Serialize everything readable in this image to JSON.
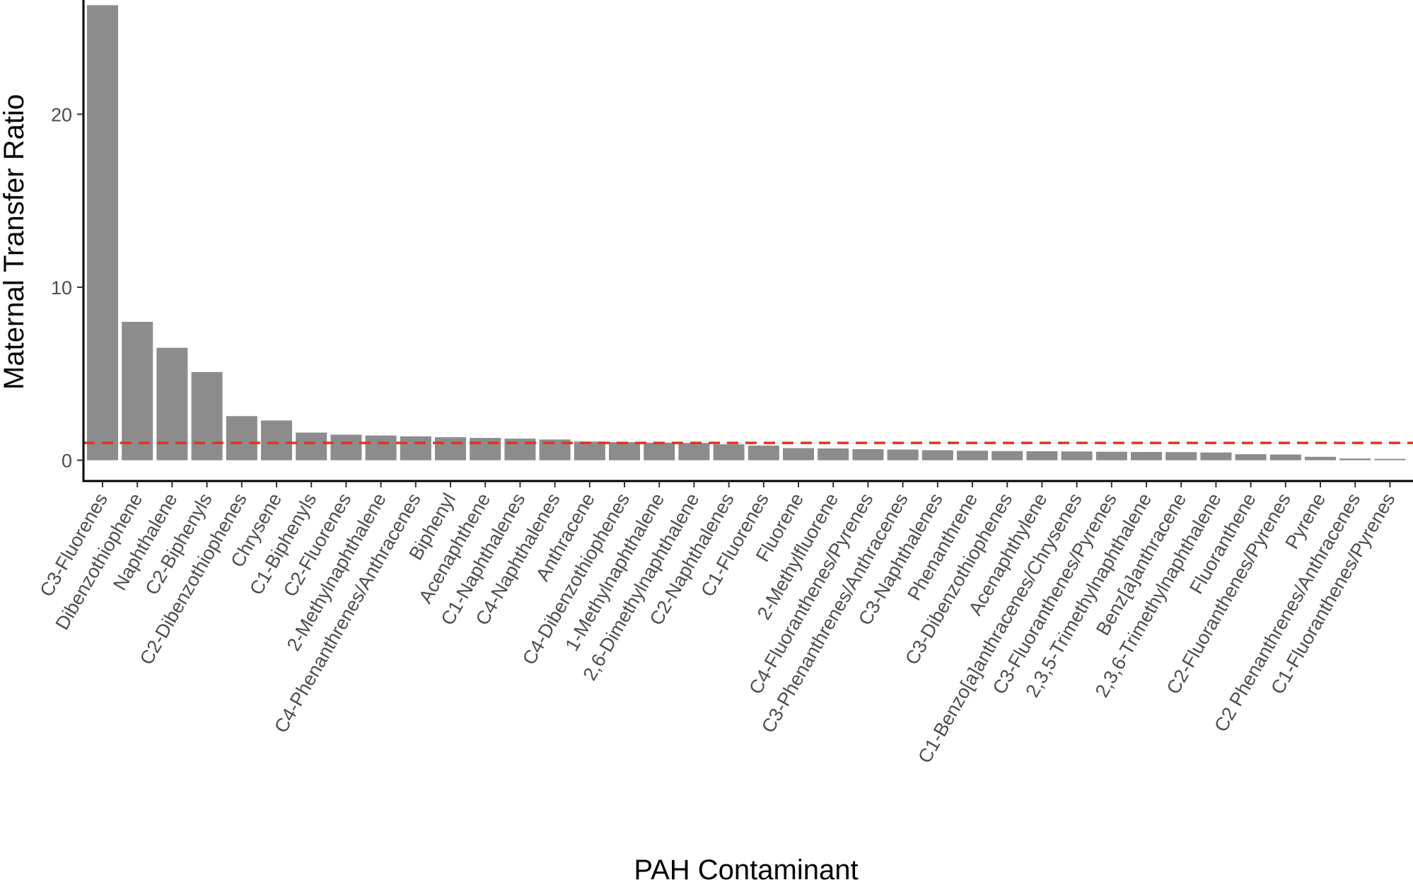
{
  "chart_data": {
    "type": "bar",
    "xlabel": "PAH Contaminant",
    "ylabel": "Maternal Transfer Ratio",
    "ylim": [
      -1.2,
      26.6
    ],
    "yticks": [
      0,
      10,
      20
    ],
    "grid": false,
    "legend": "none",
    "bar_color": "#8c8c8c",
    "reference_line": {
      "y": 1,
      "color": "#e8301e",
      "style": "dashed"
    },
    "categories": [
      "C3-Fluorenes",
      "Dibenzothiophene",
      "Naphthalene",
      "C2-Biphenyls",
      "C2-Dibenzothiophenes",
      "Chrysene",
      "C1-Biphenyls",
      "C2-Fluorenes",
      "2-Methylnaphthalene",
      "C4-Phenanthrenes/Anthracenes",
      "Biphenyl",
      "Acenaphthene",
      "C1-Naphthalenes",
      "C4-Naphthalenes",
      "Anthracene",
      "C4-Dibenzothiophenes",
      "1-Methylnaphthalene",
      "2,6-Dimethylnaphthalene",
      "C2-Naphthalenes",
      "C1-Fluorenes",
      "Fluorene",
      "2-Methylfluorene",
      "C4-Fluoranthenes/Pyrenes",
      "C3-Phenanthrenes/Anthracenes",
      "C3-Naphthalenes",
      "Phenanthrene",
      "C3-Dibenzothiophenes",
      "Acenaphthylene",
      "C1-Benzo[a]anthracenes/Chrysenes",
      "C3-Fluoranthenes/Pyrenes",
      "2,3,5-Trimethylnaphthalene",
      "Benz[a]anthracene",
      "2,3,6-Trimethylnaphthalene",
      "Fluoranthene",
      "C2-Fluoranthenes/Pyrenes",
      "Pyrene",
      "C2 Phenanthrenes/Anthracenes",
      "C1-Fluoranthenes/Pyrenes"
    ],
    "values": [
      26.3,
      8.0,
      6.5,
      5.1,
      2.55,
      2.3,
      1.6,
      1.48,
      1.43,
      1.38,
      1.33,
      1.29,
      1.25,
      1.2,
      1.08,
      1.05,
      1.02,
      1.0,
      0.92,
      0.85,
      0.7,
      0.68,
      0.64,
      0.62,
      0.58,
      0.55,
      0.53,
      0.52,
      0.51,
      0.49,
      0.48,
      0.47,
      0.45,
      0.35,
      0.33,
      0.2,
      0.1,
      0.08
    ]
  }
}
